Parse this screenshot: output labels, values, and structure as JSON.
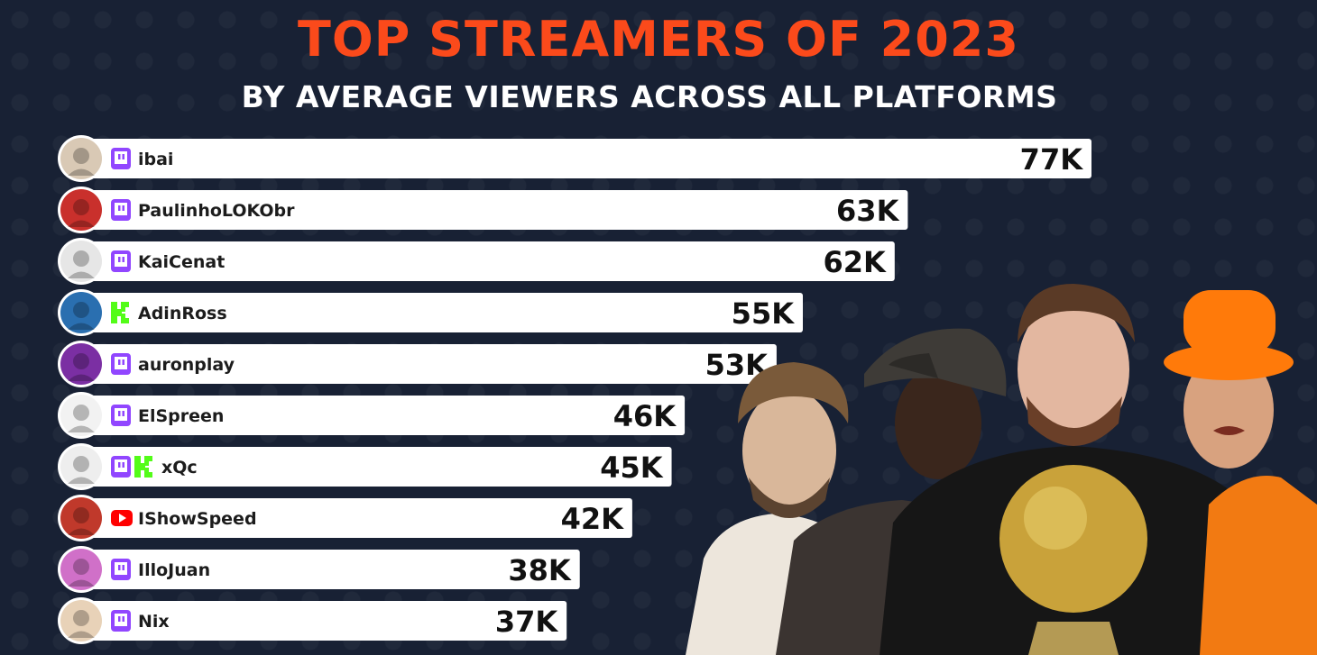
{
  "header": {
    "title": "TOP STREAMERS OF 2023",
    "subtitle": "BY AVERAGE VIEWERS ACROSS ALL PLATFORMS"
  },
  "colors": {
    "background": "#182134",
    "title": "#fb4a1b",
    "bar": "#ffffff",
    "twitch": "#9146ff",
    "kick": "#53fc18",
    "youtube": "#ff0000"
  },
  "chart_data": {
    "type": "bar",
    "orientation": "horizontal",
    "title": "TOP STREAMERS OF 2023",
    "subtitle": "BY AVERAGE VIEWERS ACROSS ALL PLATFORMS",
    "xlabel": "",
    "ylabel": "",
    "xlim": [
      0,
      77
    ],
    "grid": false,
    "legend": "none",
    "categories": [
      "ibai",
      "PaulinhoLOKObr",
      "KaiCenat",
      "AdinRoss",
      "auronplay",
      "ElSpreen",
      "xQc",
      "IShowSpeed",
      "IlloJuan",
      "Nix"
    ],
    "values": [
      77,
      63,
      62,
      55,
      53,
      46,
      45,
      42,
      38,
      37
    ],
    "value_labels": [
      "77K",
      "63K",
      "62K",
      "55K",
      "53K",
      "46K",
      "45K",
      "42K",
      "38K",
      "37K"
    ],
    "platforms": [
      [
        "twitch-icon"
      ],
      [
        "twitch-icon"
      ],
      [
        "twitch-icon"
      ],
      [
        "kick-icon"
      ],
      [
        "twitch-icon"
      ],
      [
        "twitch-icon"
      ],
      [
        "twitch-icon",
        "kick-icon"
      ],
      [
        "youtube-icon"
      ],
      [
        "twitch-icon"
      ],
      [
        "twitch-icon"
      ]
    ],
    "avatar_colors": [
      "#d9c9b5",
      "#c9302c",
      "#e6e6e6",
      "#2a6fb0",
      "#7b2fa3",
      "#f2f2f2",
      "#eeeeee",
      "#c0392b",
      "#d070c8",
      "#e8d2b8"
    ]
  }
}
